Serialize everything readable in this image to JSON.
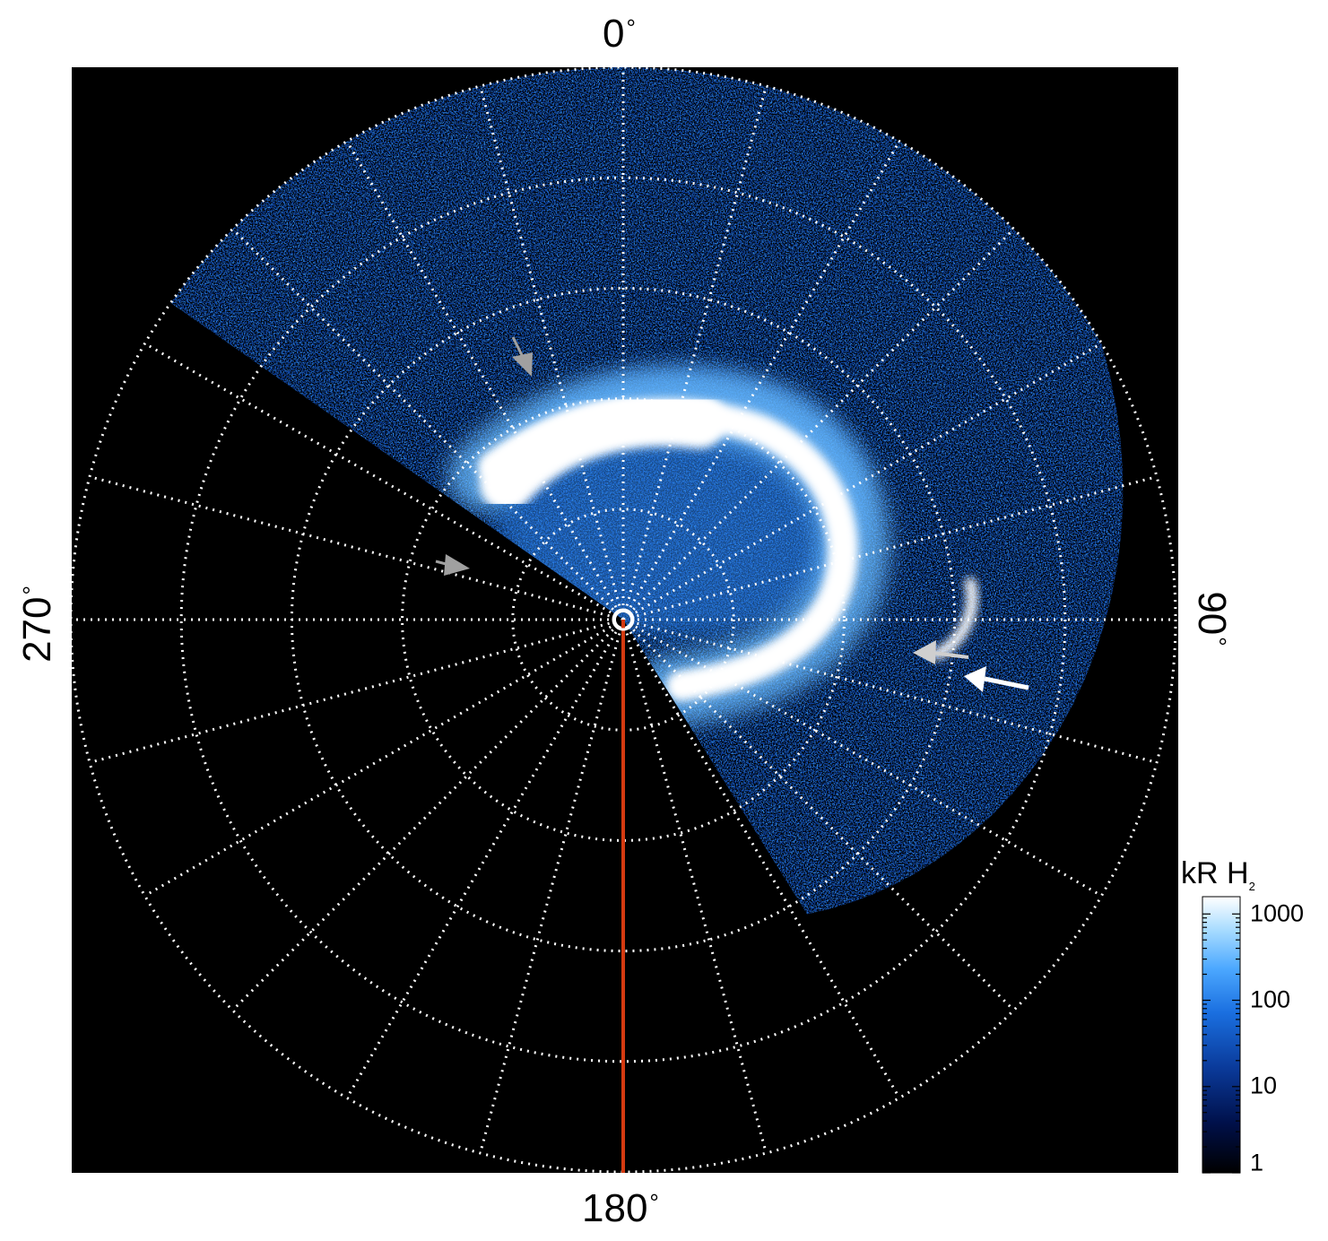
{
  "figure": {
    "axis_labels": {
      "top": "0",
      "right": "90",
      "bottom": "180",
      "left": "270",
      "unit_symbol": "°"
    },
    "colorbar": {
      "title": "kR H",
      "title_subscript": "2",
      "scale": "log",
      "tick_labels": [
        "1000",
        "100",
        "10",
        "1"
      ],
      "colors": [
        "#000000",
        "#00104a",
        "#0a3a9a",
        "#1a6fe0",
        "#4ca8ff",
        "#a8dcff",
        "#ffffff"
      ]
    },
    "colors": {
      "background": "#000000",
      "grid": "#ffffff",
      "meridian_line": "#d43a10",
      "arrow_white": "#ffffff",
      "arrow_gray": "#a0a0a0"
    },
    "grid": {
      "style": "dotted",
      "latitude_circles": 5,
      "meridian_spacing_deg": 15
    }
  }
}
